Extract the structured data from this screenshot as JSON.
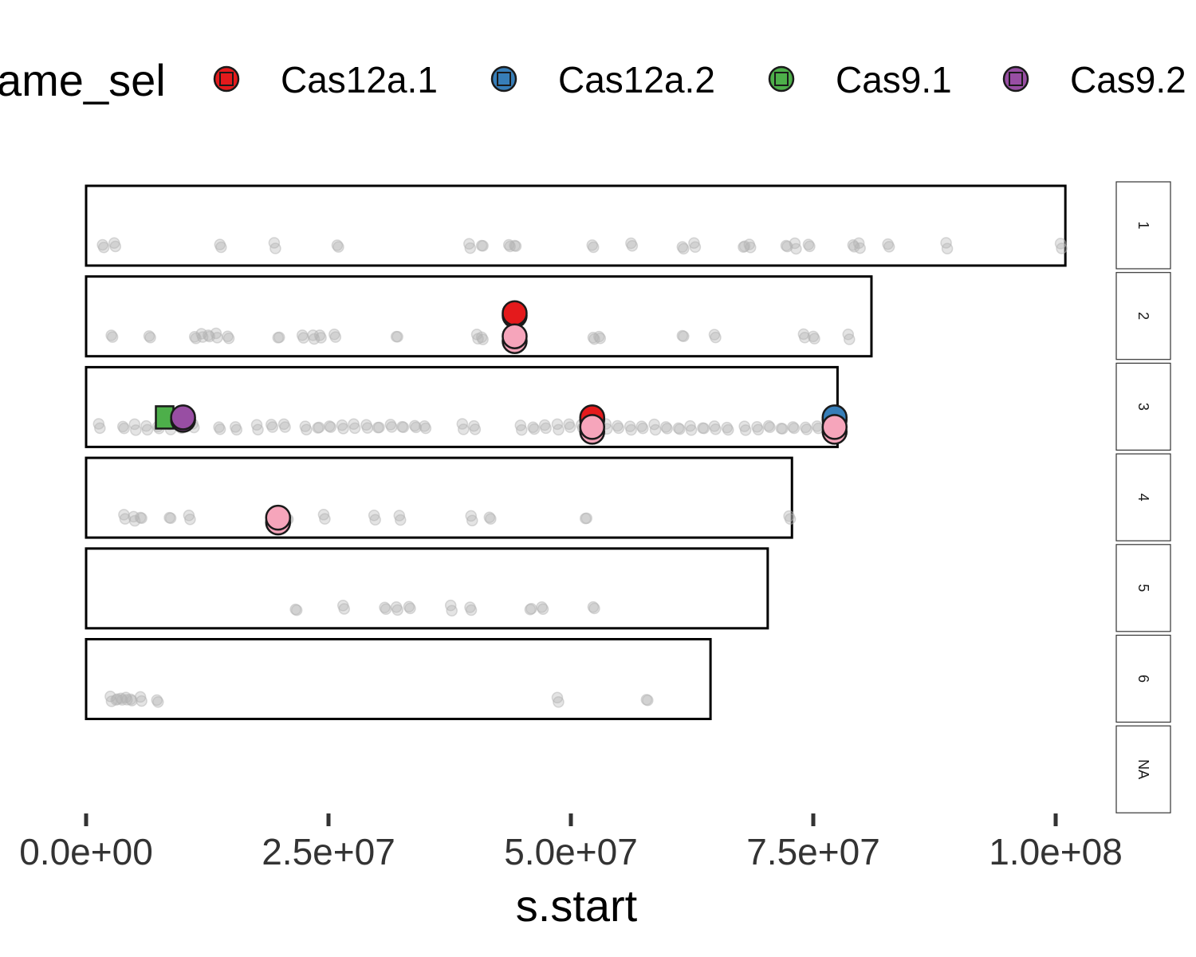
{
  "chart_data": {
    "type": "scatter",
    "xlabel": "s.start",
    "x_ticks": [
      "0.0e+00",
      "2.5e+07",
      "5.0e+07",
      "7.5e+07",
      "1.0e+08"
    ],
    "x_tick_values": [
      0,
      25000000,
      50000000,
      75000000,
      100000000
    ],
    "xlim": [
      0,
      101000000
    ],
    "legend": {
      "title": "name_sel",
      "title_visible": "ame_sel",
      "placement": "top",
      "entries": [
        {
          "name": "Cas12a.1",
          "color": "#e41a1c"
        },
        {
          "name": "Cas12a.2",
          "color": "#377eb8"
        },
        {
          "name": "Cas9.1",
          "color": "#4daf4a"
        },
        {
          "name": "Cas9.2",
          "color": "#984ea3"
        }
      ]
    },
    "match_color": "#f6a5bb",
    "background_color": "#b3b3b3",
    "panels": [
      {
        "label": "1",
        "length": 101000000,
        "background_x": [
          1700000.0,
          2900000.0,
          13800000.0,
          19400000.0,
          25900000.0,
          39500000.0,
          40800000.0,
          43600000.0,
          44200000.0,
          52200000.0,
          56200000.0,
          61500000.0,
          62700000.0,
          67800000.0,
          68400000.0,
          72200000.0,
          73100000.0,
          74500000.0,
          79100000.0,
          79700000.0,
          82700000.0,
          88700000.0,
          100500000.0
        ],
        "highlights": []
      },
      {
        "label": "2",
        "length": 81000000,
        "background_x": [
          2600000.0,
          6500000.0,
          11200000.0,
          11900000.0,
          12600000.0,
          13400000.0,
          14600000.0,
          19800000.0,
          22300000.0,
          23400000.0,
          24100000.0,
          25600000.0,
          32000000.0,
          40300000.0,
          40800000.0,
          52300000.0,
          52900000.0,
          61500000.0,
          64800000.0,
          74000000.0,
          75000000.0,
          78600000.0
        ],
        "highlights": [
          {
            "series": "Cas12a.1",
            "x": 44200000.0,
            "row": "series"
          },
          {
            "series": "Cas12a.1",
            "x": 44200000.0,
            "row": "match"
          }
        ]
      },
      {
        "label": "3",
        "length": 77500000,
        "background_x": [
          1300000.0,
          3800000.0,
          5000000.0,
          6200000.0,
          7400000.0,
          8600000.0,
          9800000.0,
          11000000.0,
          13700000.0,
          15400000.0,
          17600000.0,
          19100000.0,
          20400000.0,
          22600000.0,
          23900000.0,
          25100000.0,
          26400000.0,
          27600000.0,
          28900000.0,
          30100000.0,
          31400000.0,
          32600000.0,
          33900000.0,
          34900000.0,
          38800000.0,
          40000000.0,
          44800000.0,
          46100000.0,
          47300000.0,
          48600000.0,
          49800000.0,
          51100000.0,
          53600000.0,
          54800000.0,
          56100000.0,
          57300000.0,
          58600000.0,
          59800000.0,
          61100000.0,
          62300000.0,
          63600000.0,
          64800000.0,
          66100000.0,
          67900000.0,
          69200000.0,
          70400000.0,
          71700000.0,
          72900000.0,
          74200000.0,
          75400000.0,
          76700000.0
        ],
        "highlights": [
          {
            "series": "Cas9.1",
            "x": 8100000.0,
            "row": "series",
            "shape": "square"
          },
          {
            "series": "Cas9.2",
            "x": 10000000.0,
            "row": "series"
          },
          {
            "series": "Cas12a.1",
            "x": 52200000.0,
            "row": "series"
          },
          {
            "series": "Cas12a.1",
            "x": 52200000.0,
            "row": "match"
          },
          {
            "series": "Cas12a.2",
            "x": 77200000.0,
            "row": "series"
          },
          {
            "series": "Cas12a.2",
            "x": 77200000.0,
            "row": "match"
          }
        ]
      },
      {
        "label": "4",
        "length": 72800000,
        "background_x": [
          3900000.0,
          4900000.0,
          5600000.0,
          8600000.0,
          10600000.0,
          19200000.0,
          20700000.0,
          24500000.0,
          29700000.0,
          32300000.0,
          39700000.0,
          41600000.0,
          51500000.0,
          72500000.0
        ],
        "highlights": [
          {
            "series": "Cas9.2",
            "x": 19800000.0,
            "row": "match"
          }
        ]
      },
      {
        "label": "5",
        "length": 70300000,
        "background_x": [
          21600000.0,
          26500000.0,
          30800000.0,
          32000000.0,
          33300000.0,
          37600000.0,
          39600000.0,
          45800000.0,
          47000000.0,
          52300000.0
        ],
        "highlights": []
      },
      {
        "label": "6",
        "length": 64400000,
        "background_x": [
          2500000.0,
          3100000.0,
          3600000.0,
          4100000.0,
          4600000.0,
          5600000.0,
          7300000.0,
          48600000.0,
          57800000.0
        ],
        "highlights": []
      },
      {
        "label": "NA",
        "length": 0,
        "background_x": [],
        "highlights": []
      }
    ]
  }
}
